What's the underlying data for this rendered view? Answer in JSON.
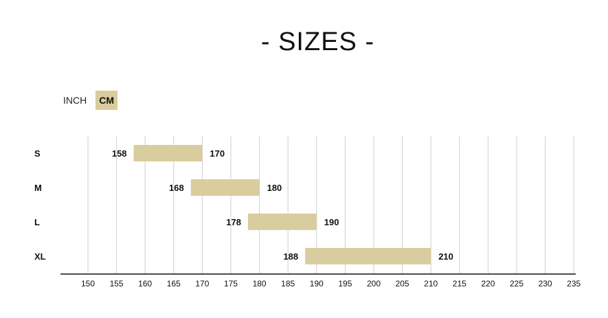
{
  "title": "- SIZES -",
  "unit_toggle": {
    "options": [
      "INCH",
      "CM"
    ],
    "selected": "CM"
  },
  "colors": {
    "bar": "#d9cc9e",
    "grid": "#cfcfcf",
    "axis": "#111111",
    "text": "#111111"
  },
  "chart_data": {
    "type": "bar",
    "orientation": "horizontal-range",
    "categories": [
      "S",
      "M",
      "L",
      "XL"
    ],
    "ranges": [
      {
        "size": "S",
        "min": 158,
        "max": 170
      },
      {
        "size": "M",
        "min": 168,
        "max": 180
      },
      {
        "size": "L",
        "min": 178,
        "max": 190
      },
      {
        "size": "XL",
        "min": 188,
        "max": 210
      }
    ],
    "x_ticks": [
      "150",
      "155",
      "160",
      "165",
      "170",
      "175",
      "180",
      "185",
      "190",
      "195",
      "200",
      "205",
      "210",
      "215",
      "220",
      "225",
      "230",
      "235"
    ],
    "xlim": [
      145.5,
      235
    ],
    "grid": true
  }
}
